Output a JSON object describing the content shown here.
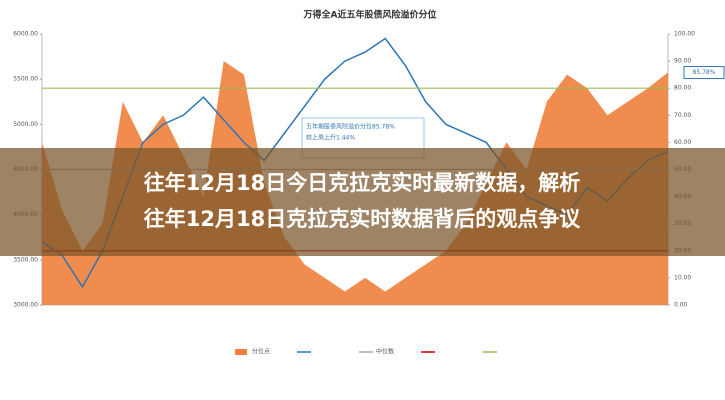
{
  "headline": {
    "lines": [
      "往年12月18日今日克拉克实时最新数据，解析",
      "往年12月18日克拉克实时数据背后的观点争议"
    ]
  },
  "chart_data": {
    "type": "line",
    "title": "万得全A近五年股债风险溢价分位",
    "categories": [
      null,
      null,
      null,
      null,
      null,
      null,
      null,
      null,
      null,
      null,
      null,
      null,
      null,
      null,
      null,
      null,
      null,
      null,
      null,
      null,
      null,
      null,
      null,
      null,
      null,
      null,
      null,
      null,
      null,
      null,
      null,
      null
    ],
    "series": [
      {
        "name": "分位点",
        "color": "#f07f3c",
        "axis": "y2",
        "kind": "area",
        "values": [
          60,
          35,
          20,
          30,
          75,
          60,
          70,
          55,
          40,
          90,
          85,
          45,
          25,
          15,
          10,
          5,
          10,
          5,
          10,
          15,
          20,
          30,
          45,
          60,
          50,
          75,
          85,
          80,
          70,
          75,
          80,
          85.78
        ]
      },
      {
        "color": "#2e75b6",
        "kind": "line",
        "values": [
          3700,
          3550,
          3200,
          3600,
          4200,
          4800,
          5000,
          5100,
          5300,
          5050,
          4800,
          4600,
          4900,
          5200,
          5500,
          5700,
          5800,
          5950,
          5650,
          5250,
          5000,
          4900,
          4800,
          4500,
          4200,
          4100,
          4000,
          4300,
          4150,
          4400,
          4600,
          4700
        ]
      }
    ],
    "reference_lines": [
      {
        "name": "中位数",
        "value": 50,
        "color": "#a6a6a6",
        "axis": "y2"
      },
      {
        "value": 20,
        "color": "#c00000",
        "axis": "y2"
      },
      {
        "value": 80,
        "color": "#9bbb59",
        "axis": "y2"
      }
    ],
    "ylim": [
      3000,
      6000
    ],
    "yticks": [
      {
        "value": 3000,
        "label": "3000.00"
      },
      {
        "value": 3500,
        "label": "3500.00"
      },
      {
        "value": 4000,
        "label": "4000.00"
      },
      {
        "value": 4500,
        "label": "4500.00"
      },
      {
        "value": 5000,
        "label": "5000.00"
      },
      {
        "value": 5500,
        "label": "5500.00"
      },
      {
        "value": 6000,
        "label": "6000.00"
      }
    ],
    "y2lim": [
      0,
      100
    ],
    "y2ticks": [
      {
        "value": 0,
        "label": "0.00"
      },
      {
        "value": 10,
        "label": "10.00"
      },
      {
        "value": 20,
        "label": "20.00"
      },
      {
        "value": 30,
        "label": "30.00"
      },
      {
        "value": 40,
        "label": "40.00"
      },
      {
        "value": 50,
        "label": "50.00"
      },
      {
        "value": 60,
        "label": "60.00"
      },
      {
        "value": 70,
        "label": "70.00"
      },
      {
        "value": 80,
        "label": "80.00"
      },
      {
        "value": 90,
        "label": "90.00"
      },
      {
        "value": 100,
        "label": "100.00"
      }
    ],
    "callout": "85.78%",
    "annotation": [
      "五年期股债风险溢价分位85.78%",
      "较上周上升1.44%"
    ]
  }
}
